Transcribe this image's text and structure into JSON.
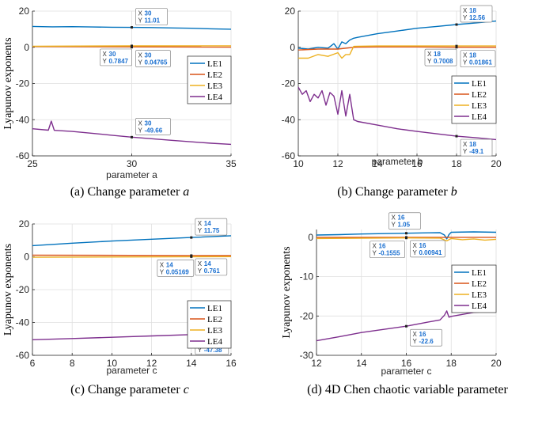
{
  "colors": {
    "LE1": "#0072BD",
    "LE2": "#D95319",
    "LE3": "#EDB120",
    "LE4": "#7E2F8E"
  },
  "chart_data": [
    {
      "id": "a",
      "type": "line",
      "caption_prefix": "(a) Change parameter ",
      "caption_var": "a",
      "xlabel": "parameter a",
      "ylabel": "Lyapunov exponents",
      "xlim": [
        25,
        35
      ],
      "ylim": [
        -60,
        20
      ],
      "xticks": [
        25,
        30,
        35
      ],
      "yticks": [
        20,
        0,
        -20,
        -40,
        -60
      ],
      "grid": true,
      "legend_position": "middle-right",
      "series": [
        {
          "name": "LE1",
          "x": [
            25,
            26,
            27,
            28,
            29,
            30,
            31,
            32,
            33,
            34,
            35
          ],
          "y": [
            11.5,
            11.3,
            11.4,
            11.2,
            11.1,
            11.01,
            10.9,
            10.7,
            10.5,
            10.2,
            10.0
          ]
        },
        {
          "name": "LE2",
          "x": [
            25,
            35
          ],
          "y": [
            0.4,
            0.1
          ]
        },
        {
          "name": "LE3",
          "x": [
            25,
            30,
            35
          ],
          "y": [
            0.6,
            0.7847,
            0.8
          ]
        },
        {
          "name": "LE4",
          "x": [
            25,
            25.8,
            25.95,
            26.1,
            27,
            28,
            29,
            30,
            31,
            32,
            33,
            34,
            35
          ],
          "y": [
            -45,
            -45.8,
            -40.8,
            -45.9,
            -46.5,
            -47.5,
            -48.6,
            -49.66,
            -50.5,
            -51.4,
            -52.2,
            -53.0,
            -53.6
          ]
        }
      ],
      "datatips": [
        {
          "x": "30",
          "y": "11.01"
        },
        {
          "x": "30",
          "y": "0.7847"
        },
        {
          "x": "30",
          "y": "0.04765"
        },
        {
          "x": "30",
          "y": "-49.66"
        }
      ]
    },
    {
      "id": "b",
      "type": "line",
      "caption_prefix": "(b) Change parameter ",
      "caption_var": "b",
      "xlabel": "parameter b",
      "ylabel": "",
      "xlim": [
        10,
        20
      ],
      "ylim": [
        -60,
        20
      ],
      "xticks": [
        10,
        12,
        14,
        16,
        18,
        20
      ],
      "yticks": [
        20,
        0,
        -20,
        -40,
        -60
      ],
      "grid": true,
      "legend_position": "middle-right",
      "series": [
        {
          "name": "LE1",
          "x": [
            10,
            10.5,
            11,
            11.5,
            11.8,
            12,
            12.2,
            12.4,
            12.6,
            12.8,
            13,
            14,
            15,
            16,
            17,
            18,
            19,
            20
          ],
          "y": [
            -0.5,
            -1,
            0,
            -0.5,
            2,
            -1,
            3,
            2,
            4,
            5,
            5.5,
            7.5,
            9,
            10.5,
            11.5,
            12.56,
            13.5,
            14.5
          ]
        },
        {
          "name": "LE2",
          "x": [
            10,
            11,
            12,
            12.4,
            12.8,
            13,
            14,
            16,
            18,
            20
          ],
          "y": [
            -1.5,
            -1,
            -1,
            -0.5,
            0,
            0.1,
            0.2,
            0.2,
            0.01861,
            0
          ]
        },
        {
          "name": "LE3",
          "x": [
            10,
            10.5,
            11,
            11.5,
            12,
            12.2,
            12.4,
            12.6,
            12.8,
            13,
            14,
            16,
            18,
            20
          ],
          "y": [
            -6,
            -6,
            -4,
            -5,
            -3,
            -6,
            -4,
            -4,
            0.5,
            0.6,
            0.7,
            0.7,
            0.7008,
            0.7
          ]
        },
        {
          "name": "LE4",
          "x": [
            10,
            10.2,
            10.4,
            10.6,
            10.8,
            11,
            11.2,
            11.4,
            11.6,
            11.8,
            12,
            12.2,
            12.4,
            12.6,
            12.8,
            13,
            14,
            15,
            16,
            17,
            18,
            19,
            20
          ],
          "y": [
            -22,
            -26,
            -24,
            -30,
            -26,
            -28,
            -24,
            -32,
            -25,
            -27,
            -37,
            -24,
            -38,
            -26,
            -40,
            -41,
            -43,
            -45,
            -46.5,
            -47.8,
            -49.1,
            -50,
            -51
          ]
        }
      ],
      "datatips": [
        {
          "x": "18",
          "y": "12.56"
        },
        {
          "x": "18",
          "y": "0.7008"
        },
        {
          "x": "18",
          "y": "0.01861"
        },
        {
          "x": "18",
          "y": "-49.1"
        }
      ]
    },
    {
      "id": "c",
      "type": "line",
      "caption_prefix": "(c) Change parameter ",
      "caption_var": "c",
      "xlabel": "parameter c",
      "ylabel": "Lyapunov exponents",
      "xlim": [
        6,
        16
      ],
      "ylim": [
        -60,
        20
      ],
      "xticks": [
        6,
        8,
        10,
        12,
        14,
        16
      ],
      "yticks": [
        20,
        0,
        -20,
        -40,
        -60
      ],
      "grid": true,
      "legend_position": "lower-right",
      "series": [
        {
          "name": "LE1",
          "x": [
            6,
            8,
            10,
            12,
            14,
            16
          ],
          "y": [
            6.8,
            8.3,
            9.6,
            10.7,
            11.75,
            12.8
          ]
        },
        {
          "name": "LE2",
          "x": [
            6,
            14,
            16
          ],
          "y": [
            1.0,
            0.761,
            0.7
          ]
        },
        {
          "name": "LE3",
          "x": [
            6,
            14,
            16
          ],
          "y": [
            -0.3,
            0.05169,
            0.1
          ]
        },
        {
          "name": "LE4",
          "x": [
            6,
            8,
            10,
            12,
            14,
            16
          ],
          "y": [
            -50.5,
            -49.8,
            -49,
            -48.2,
            -47.38,
            -46.5
          ]
        }
      ],
      "datatips": [
        {
          "x": "14",
          "y": "11.75"
        },
        {
          "x": "14",
          "y": "0.05169"
        },
        {
          "x": "14",
          "y": "0.761"
        },
        {
          "x": "14",
          "y": "-47.38"
        }
      ]
    },
    {
      "id": "d",
      "type": "line",
      "caption_prefix": "(d) 4D Chen chaotic variable parameter",
      "caption_var": "",
      "xlabel": "parameter c",
      "ylabel": "Lyapunov exponents",
      "xlim": [
        12,
        20
      ],
      "ylim": [
        -30,
        2
      ],
      "xticks": [
        12,
        14,
        16,
        18,
        20
      ],
      "yticks": [
        0,
        -10,
        -20,
        -30
      ],
      "grid": true,
      "legend_position": "middle-right",
      "series": [
        {
          "name": "LE1",
          "x": [
            12,
            13,
            14,
            15,
            16,
            17,
            17.5,
            17.7,
            17.8,
            17.9,
            18,
            19,
            20
          ],
          "y": [
            0.6,
            0.7,
            0.85,
            0.95,
            1.05,
            1.15,
            1.2,
            0.6,
            -0.4,
            0.7,
            1.3,
            1.4,
            1.3
          ]
        },
        {
          "name": "LE2",
          "x": [
            12,
            16,
            20
          ],
          "y": [
            0.01,
            0.00941,
            0.01
          ]
        },
        {
          "name": "LE3",
          "x": [
            12,
            16,
            17.5,
            17.8,
            18,
            18.5,
            19,
            19.5,
            20
          ],
          "y": [
            -0.3,
            -0.1555,
            -0.2,
            -0.9,
            -0.3,
            -0.6,
            -0.4,
            -0.7,
            -0.5
          ]
        },
        {
          "name": "LE4",
          "x": [
            12,
            13,
            14,
            15,
            16,
            17,
            17.5,
            17.7,
            17.8,
            17.9,
            18,
            19,
            19.5,
            20
          ],
          "y": [
            -26.3,
            -25.3,
            -24.2,
            -23.4,
            -22.6,
            -21.5,
            -21,
            -19.8,
            -18.7,
            -20.3,
            -20.1,
            -19.1,
            -18.9,
            -18.4
          ]
        }
      ],
      "datatips": [
        {
          "x": "16",
          "y": "1.05"
        },
        {
          "x": "16",
          "y": "-0.1555"
        },
        {
          "x": "16",
          "y": "0.00941"
        },
        {
          "x": "16",
          "y": "-22.6"
        }
      ]
    }
  ]
}
